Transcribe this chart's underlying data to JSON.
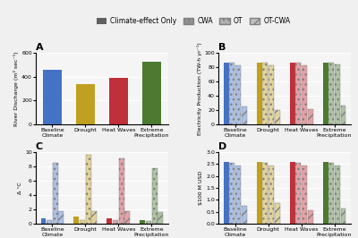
{
  "legend_labels": [
    "Climate-effect Only",
    "CWA",
    "OT",
    "OT-CWA"
  ],
  "categories": [
    "Baseline\nClimate",
    "Drought",
    "Heat Waves",
    "Extreme\nPrecipitation"
  ],
  "panel_A": {
    "title": "A",
    "ylabel": "River Discharge (m³ sec⁻¹)",
    "ylim": [
      0,
      600
    ],
    "yticks": [
      0,
      200,
      400,
      600
    ],
    "values_climate_only": [
      460,
      340,
      390,
      530
    ],
    "colors": [
      "#4472c4",
      "#c0a020",
      "#c0303a",
      "#4c7a30"
    ]
  },
  "panel_B": {
    "title": "B",
    "ylabel": "Electricity Production (TW-h yr⁻¹)",
    "ylim": [
      0,
      100
    ],
    "yticks": [
      0,
      20,
      40,
      60,
      80,
      100
    ],
    "groups": {
      "Baseline\nClimate": {
        "climate_only": 87,
        "cwa": 86,
        "ot": 83,
        "ot_cwa": 25
      },
      "Drought": {
        "climate_only": 87,
        "cwa": 86,
        "ot": 83,
        "ot_cwa": 20
      },
      "Heat Waves": {
        "climate_only": 87,
        "cwa": 86,
        "ot": 83,
        "ot_cwa": 21
      },
      "Extreme\nPrecipitation": {
        "climate_only": 87,
        "cwa": 86,
        "ot": 84,
        "ot_cwa": 26
      }
    }
  },
  "panel_C": {
    "title": "C",
    "ylabel": "Δ °C",
    "ylim": [
      0,
      10
    ],
    "yticks": [
      0,
      2,
      4,
      6,
      8,
      10
    ],
    "groups": {
      "Baseline\nClimate": {
        "climate_only": 0.7,
        "cwa": 0.5,
        "ot": 8.5,
        "ot_cwa": 1.7
      },
      "Drought": {
        "climate_only": 1.0,
        "cwa": 0.5,
        "ot": 9.7,
        "ot_cwa": 1.7
      },
      "Heat Waves": {
        "climate_only": 0.7,
        "cwa": 0.5,
        "ot": 9.2,
        "ot_cwa": 1.7
      },
      "Extreme\nPrecipitation": {
        "climate_only": 0.45,
        "cwa": 0.4,
        "ot": 7.8,
        "ot_cwa": 1.6
      }
    }
  },
  "panel_D": {
    "title": "D",
    "ylabel": "$100 M USD",
    "ylim": [
      0,
      3
    ],
    "yticks": [
      0,
      0.5,
      1.0,
      1.5,
      2.0,
      2.5,
      3.0
    ],
    "groups": {
      "Baseline\nClimate": {
        "climate_only": 2.6,
        "cwa": 2.55,
        "ot": 2.45,
        "ot_cwa": 0.75
      },
      "Drought": {
        "climate_only": 2.6,
        "cwa": 2.55,
        "ot": 2.45,
        "ot_cwa": 0.85
      },
      "Heat Waves": {
        "climate_only": 2.6,
        "cwa": 2.55,
        "ot": 2.45,
        "ot_cwa": 0.55
      },
      "Extreme\nPrecipitation": {
        "climate_only": 2.6,
        "cwa": 2.55,
        "ot": 2.45,
        "ot_cwa": 0.65
      }
    }
  },
  "group_colors": {
    "Baseline\nClimate": "#4472c4",
    "Drought": "#c0a020",
    "Heat Waves": "#c0303a",
    "Extreme\nPrecipitation": "#4c7a30"
  },
  "solid_alpha": 1.0,
  "light_alpha": 0.45,
  "bg_color": "#f5f5f5"
}
